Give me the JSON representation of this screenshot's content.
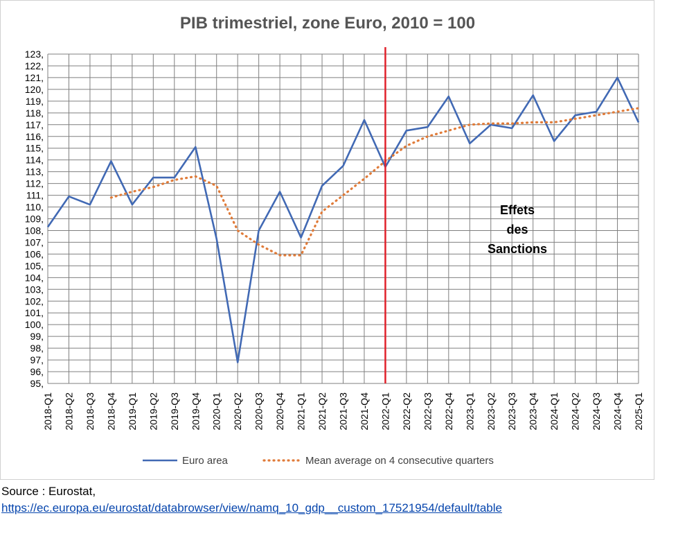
{
  "chart_data": {
    "type": "line",
    "title": "PIB trimestriel, zone Euro, 2010 = 100",
    "xlabel": "",
    "ylabel": "",
    "ylim": [
      95,
      123
    ],
    "y_ticks": [
      "95,",
      "96,",
      "97,",
      "98,",
      "99,",
      "100,",
      "101,",
      "102,",
      "103,",
      "104,",
      "105,",
      "106,",
      "107,",
      "108,",
      "109,",
      "110,",
      "111,",
      "112,",
      "113,",
      "114,",
      "115,",
      "116,",
      "117,",
      "118,",
      "119,",
      "120,",
      "121,",
      "122,",
      "123,"
    ],
    "categories": [
      "2018-Q1",
      "2018-Q2",
      "2018-Q3",
      "2018-Q4",
      "2019-Q1",
      "2019-Q2",
      "2019-Q3",
      "2019-Q4",
      "2020-Q1",
      "2020-Q2",
      "2020-Q3",
      "2020-Q4",
      "2021-Q1",
      "2021-Q2",
      "2021-Q3",
      "2021-Q4",
      "2022-Q1",
      "2022-Q2",
      "2022-Q3",
      "2022-Q4",
      "2023-Q1",
      "2023-Q2",
      "2023-Q3",
      "2023-Q4",
      "2024-Q1",
      "2024-Q2",
      "2024-Q3",
      "2024-Q4",
      "2025-Q1"
    ],
    "grid": true,
    "legend_position": "bottom",
    "series": [
      {
        "name": "Euro area",
        "color": "#4169b4",
        "style": "solid",
        "values": [
          108.3,
          110.9,
          110.2,
          113.9,
          110.2,
          112.5,
          112.5,
          115.1,
          107.3,
          96.8,
          108.0,
          111.3,
          107.4,
          111.8,
          113.5,
          117.4,
          113.4,
          116.5,
          116.8,
          119.4,
          115.4,
          117.0,
          116.7,
          119.5,
          115.6,
          117.8,
          118.1,
          121.0,
          117.2
        ]
      },
      {
        "name": "Mean average on 4 consecutive quarters",
        "color": "#e07b39",
        "style": "dotted",
        "values": [
          null,
          null,
          null,
          110.8,
          111.3,
          111.7,
          112.3,
          112.6,
          111.8,
          108.0,
          106.8,
          105.9,
          105.9,
          109.6,
          111.0,
          112.4,
          113.9,
          115.2,
          116.0,
          116.5,
          117.0,
          117.1,
          117.1,
          117.2,
          117.2,
          117.5,
          117.8,
          118.1,
          118.4
        ]
      }
    ],
    "reference_line": {
      "category": "2022-Q1",
      "color": "#e0202a"
    },
    "annotation": {
      "lines": [
        "Effets",
        "des",
        "Sanctions"
      ]
    }
  },
  "source": {
    "label": "Source : Eurostat,",
    "link": "https://ec.europa.eu/eurostat/databrowser/view/namq_10_gdp__custom_17521954/default/table"
  }
}
